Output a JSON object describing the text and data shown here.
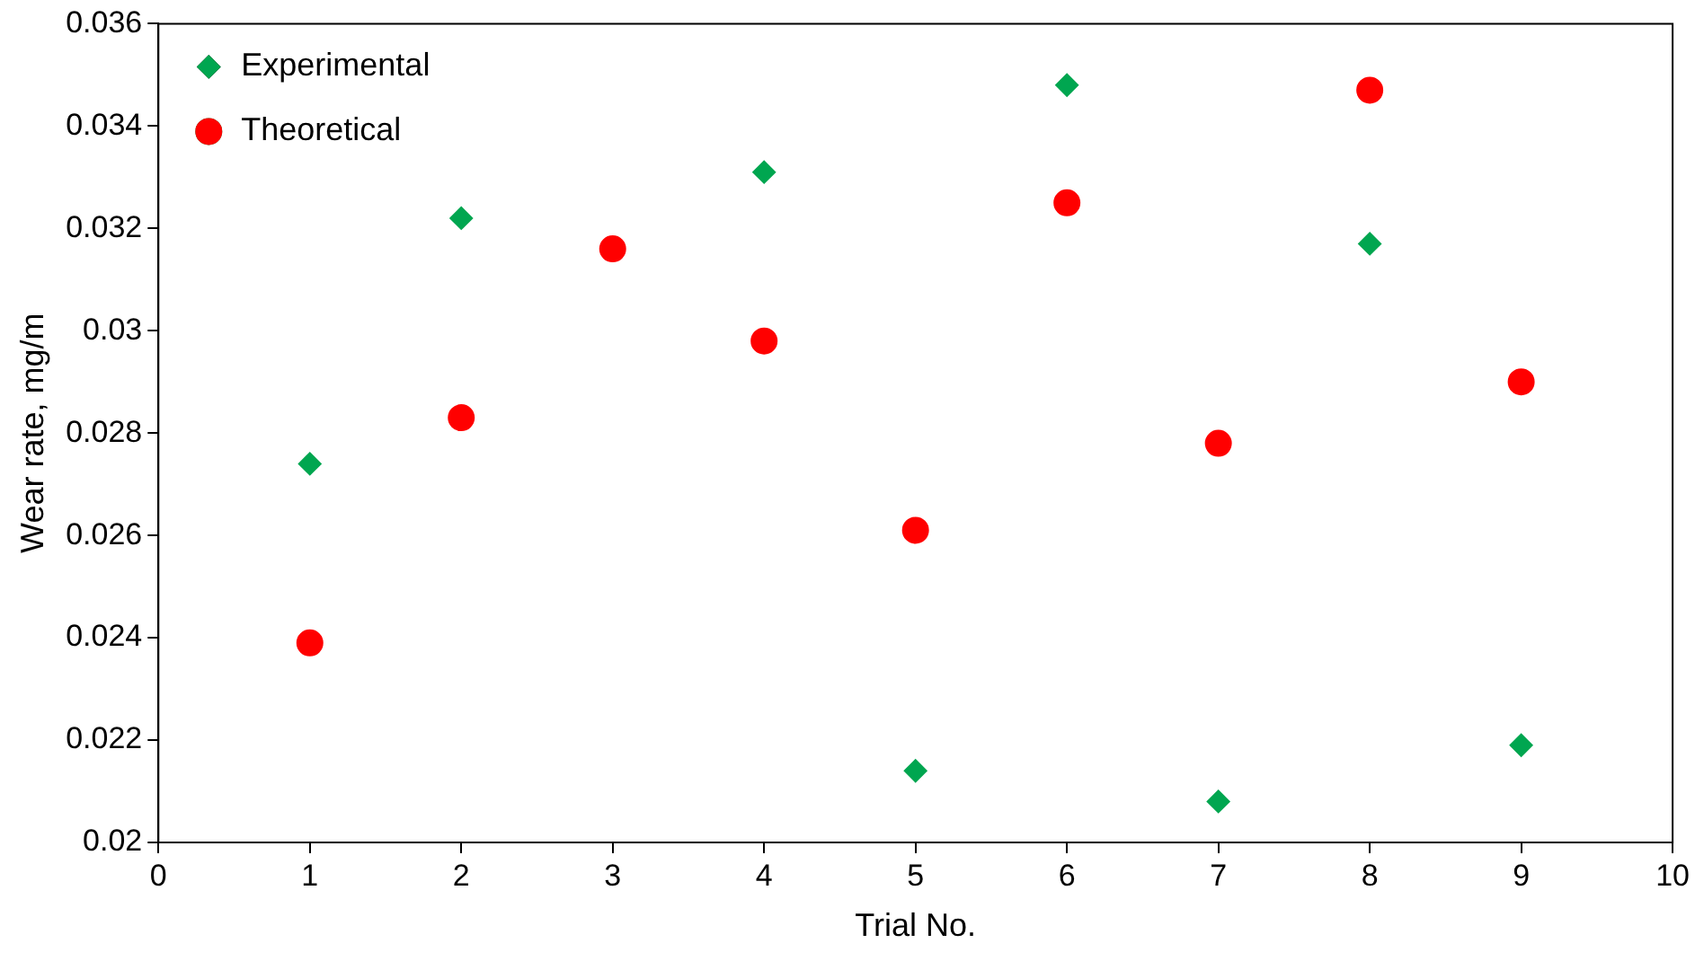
{
  "chart_data": {
    "type": "scatter",
    "xlabel": "Trial No.",
    "ylabel": "Wear rate, mg/m",
    "x": [
      1,
      2,
      3,
      4,
      5,
      6,
      7,
      8,
      9
    ],
    "series": [
      {
        "name": "Experimental",
        "color": "#00a650",
        "marker": "diamond",
        "values": [
          0.0274,
          0.0322,
          null,
          0.0331,
          0.0214,
          0.0348,
          0.0208,
          0.0317,
          0.0219
        ]
      },
      {
        "name": "Theoretical",
        "color": "#ff0000",
        "marker": "circle",
        "values": [
          0.0239,
          0.0283,
          0.0316,
          0.0298,
          0.0261,
          0.0325,
          0.0278,
          0.0347,
          0.029
        ]
      }
    ],
    "xlim": [
      0,
      10
    ],
    "xticks": [
      0,
      1,
      2,
      3,
      4,
      5,
      6,
      7,
      8,
      9,
      10
    ],
    "ylim": [
      0.02,
      0.036
    ],
    "yticks": [
      0.02,
      0.022,
      0.024,
      0.026,
      0.028,
      0.03,
      0.032,
      0.034,
      0.036
    ],
    "grid": false,
    "legend": "top left"
  }
}
